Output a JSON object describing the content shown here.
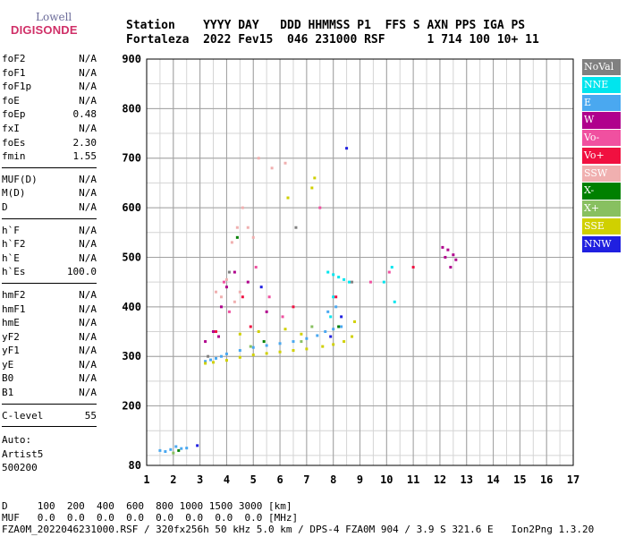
{
  "logo": {
    "line1": "Lowell",
    "line2": "DIGISONDE"
  },
  "header": {
    "labels": "Station    YYYY DAY   DDD HHMMSS P1  FFS S AXN PPS IGA PS",
    "values": "Fortaleza  2022 Fev15  046 231000 RSF      1 714 100 10+ 11"
  },
  "parameters": [
    [
      {
        "name": "foF2",
        "value": "N/A"
      },
      {
        "name": "foF1",
        "value": "N/A"
      },
      {
        "name": "foF1p",
        "value": "N/A"
      },
      {
        "name": "foE",
        "value": "N/A"
      },
      {
        "name": "foEp",
        "value": "0.48"
      },
      {
        "name": "fxI",
        "value": "N/A"
      },
      {
        "name": "foEs",
        "value": "2.30"
      },
      {
        "name": "fmin",
        "value": "1.55"
      }
    ],
    [
      {
        "name": "MUF(D)",
        "value": "N/A"
      },
      {
        "name": "M(D)",
        "value": "N/A"
      },
      {
        "name": "D",
        "value": "N/A"
      }
    ],
    [
      {
        "name": "h`F",
        "value": "N/A"
      },
      {
        "name": "h`F2",
        "value": "N/A"
      },
      {
        "name": "h`E",
        "value": "N/A"
      },
      {
        "name": "h`Es",
        "value": "100.0"
      }
    ],
    [
      {
        "name": "hmF2",
        "value": "N/A"
      },
      {
        "name": "hmF1",
        "value": "N/A"
      },
      {
        "name": "hmE",
        "value": "N/A"
      },
      {
        "name": "yF2",
        "value": "N/A"
      },
      {
        "name": "yF1",
        "value": "N/A"
      },
      {
        "name": "yE",
        "value": "N/A"
      },
      {
        "name": "B0",
        "value": "N/A"
      },
      {
        "name": "B1",
        "value": "N/A"
      }
    ],
    [
      {
        "name": "C-level",
        "value": "55"
      }
    ]
  ],
  "auto": {
    "line1": "Auto:",
    "line2": "Artist5",
    "line3": "500200"
  },
  "legend": [
    {
      "label": "NoVal",
      "color": "#808080"
    },
    {
      "label": "NNE",
      "color": "#00e5ee"
    },
    {
      "label": "E",
      "color": "#4aa8f0"
    },
    {
      "label": "W",
      "color": "#b0008c"
    },
    {
      "label": "Vo-",
      "color": "#f050a0"
    },
    {
      "label": "Vo+",
      "color": "#f01040"
    },
    {
      "label": "SSW",
      "color": "#f0b0b0"
    },
    {
      "label": "X-",
      "color": "#008000"
    },
    {
      "label": "X+",
      "color": "#88c060"
    },
    {
      "label": "SSE",
      "color": "#d0d000"
    },
    {
      "label": "NNW",
      "color": "#2020e0"
    }
  ],
  "footer": {
    "line1": "D     100  200  400  600  800 1000 1500 3000 [km]",
    "line2": "MUF   0.0  0.0  0.0  0.0  0.0  0.0  0.0  0.0 [MHz]",
    "line3": "FZA0M_2022046231000.RSF / 320fx256h 50 kHz 5.0 km / DPS-4 FZA0M 904 / 3.9 S 321.6 E   Ion2Png 1.3.20"
  },
  "chart_data": {
    "type": "scatter",
    "title": "",
    "xlabel": "",
    "ylabel": "",
    "xlim": [
      1,
      17
    ],
    "ylim": [
      80,
      900
    ],
    "xticks": [
      1,
      2,
      3,
      4,
      5,
      6,
      7,
      8,
      9,
      10,
      11,
      12,
      13,
      14,
      15,
      16,
      17
    ],
    "yticks": [
      80,
      200,
      300,
      400,
      500,
      600,
      700,
      800,
      900
    ],
    "grid": true,
    "series": [
      {
        "color": "#4aa8f0",
        "points": [
          [
            1.5,
            110
          ],
          [
            1.7,
            108
          ],
          [
            1.9,
            112
          ],
          [
            2.1,
            118
          ],
          [
            2.3,
            114
          ],
          [
            2.5,
            115
          ],
          [
            3.2,
            290
          ],
          [
            3.4,
            293
          ],
          [
            3.6,
            296
          ],
          [
            3.8,
            300
          ],
          [
            4.0,
            305
          ],
          [
            4.5,
            312
          ],
          [
            5.0,
            318
          ],
          [
            5.5,
            322
          ],
          [
            6.0,
            326
          ],
          [
            6.5,
            330
          ],
          [
            7.0,
            336
          ],
          [
            7.4,
            342
          ],
          [
            7.7,
            350
          ],
          [
            8.0,
            355
          ],
          [
            8.3,
            360
          ],
          [
            7.8,
            390
          ],
          [
            8.1,
            400
          ]
        ]
      },
      {
        "color": "#d0d000",
        "points": [
          [
            3.2,
            286
          ],
          [
            3.5,
            288
          ],
          [
            4.0,
            292
          ],
          [
            4.5,
            298
          ],
          [
            5.0,
            303
          ],
          [
            5.5,
            306
          ],
          [
            6.0,
            309
          ],
          [
            6.5,
            312
          ],
          [
            7.0,
            315
          ],
          [
            7.6,
            320
          ],
          [
            8.0,
            324
          ],
          [
            8.4,
            330
          ],
          [
            8.7,
            340
          ],
          [
            4.5,
            345
          ],
          [
            5.2,
            350
          ],
          [
            6.2,
            355
          ],
          [
            6.8,
            345
          ],
          [
            7.2,
            640
          ],
          [
            7.3,
            660
          ],
          [
            6.3,
            620
          ],
          [
            8.8,
            370
          ]
        ]
      },
      {
        "color": "#00e5ee",
        "points": [
          [
            7.8,
            470
          ],
          [
            8.0,
            465
          ],
          [
            8.2,
            460
          ],
          [
            8.4,
            455
          ],
          [
            8.6,
            450
          ],
          [
            8.0,
            420
          ],
          [
            7.9,
            380
          ],
          [
            9.9,
            450
          ],
          [
            10.2,
            480
          ],
          [
            10.3,
            410
          ]
        ]
      },
      {
        "color": "#b0008c",
        "points": [
          [
            3.2,
            330
          ],
          [
            3.5,
            350
          ],
          [
            3.8,
            400
          ],
          [
            4.0,
            440
          ],
          [
            4.3,
            470
          ],
          [
            3.7,
            340
          ],
          [
            4.8,
            450
          ],
          [
            5.5,
            390
          ],
          [
            12.1,
            520
          ],
          [
            12.3,
            515
          ],
          [
            12.5,
            505
          ],
          [
            12.6,
            495
          ],
          [
            12.4,
            480
          ],
          [
            12.2,
            500
          ]
        ]
      },
      {
        "color": "#f0b0b0",
        "points": [
          [
            3.6,
            430
          ],
          [
            3.8,
            420
          ],
          [
            4.0,
            455
          ],
          [
            4.2,
            530
          ],
          [
            4.4,
            560
          ],
          [
            4.6,
            600
          ],
          [
            4.8,
            560
          ],
          [
            4.3,
            410
          ],
          [
            5.0,
            540
          ],
          [
            4.5,
            430
          ],
          [
            5.7,
            680
          ],
          [
            6.2,
            690
          ],
          [
            5.2,
            700
          ]
        ]
      },
      {
        "color": "#f050a0",
        "points": [
          [
            3.9,
            450
          ],
          [
            4.1,
            390
          ],
          [
            5.1,
            480
          ],
          [
            5.6,
            420
          ],
          [
            6.1,
            380
          ],
          [
            7.5,
            600
          ],
          [
            9.4,
            450
          ],
          [
            10.1,
            470
          ]
        ]
      },
      {
        "color": "#f01040",
        "points": [
          [
            3.6,
            350
          ],
          [
            4.6,
            420
          ],
          [
            4.9,
            360
          ],
          [
            6.5,
            400
          ],
          [
            8.1,
            420
          ],
          [
            11.0,
            480
          ]
        ]
      },
      {
        "color": "#2020e0",
        "points": [
          [
            8.5,
            720
          ],
          [
            8.3,
            380
          ],
          [
            7.9,
            340
          ],
          [
            2.9,
            120
          ],
          [
            5.3,
            440
          ]
        ]
      },
      {
        "color": "#008000",
        "points": [
          [
            4.4,
            540
          ],
          [
            5.4,
            330
          ],
          [
            8.2,
            360
          ],
          [
            2.2,
            110
          ]
        ]
      },
      {
        "color": "#88c060",
        "points": [
          [
            6.8,
            330
          ],
          [
            7.2,
            360
          ],
          [
            2.0,
            105
          ],
          [
            4.9,
            320
          ]
        ]
      },
      {
        "color": "#808080",
        "points": [
          [
            3.3,
            300
          ],
          [
            4.1,
            470
          ],
          [
            6.6,
            560
          ],
          [
            8.7,
            450
          ]
        ]
      }
    ]
  }
}
